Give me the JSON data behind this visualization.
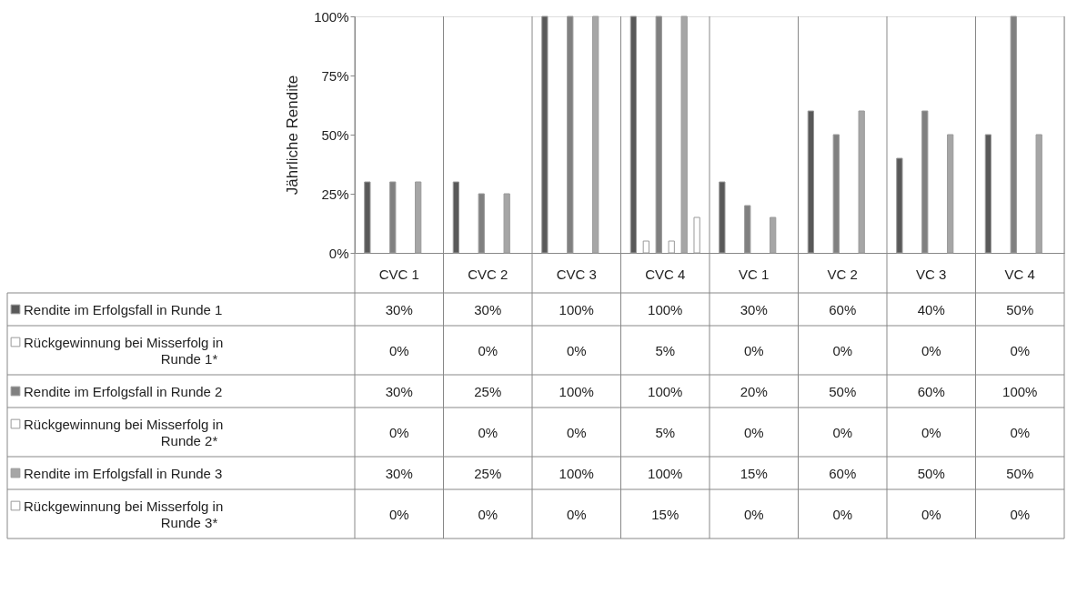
{
  "chart_data": {
    "type": "bar",
    "ylabel": "Jährliche Rendite",
    "categories": [
      "CVC 1",
      "CVC 2",
      "CVC 3",
      "CVC 4",
      "VC 1",
      "VC 2",
      "VC 3",
      "VC 4"
    ],
    "ylim": [
      0,
      100
    ],
    "yticks": [
      {
        "value": 0,
        "label": "0%"
      },
      {
        "value": 25,
        "label": "25%"
      },
      {
        "value": 50,
        "label": "50%"
      },
      {
        "value": 75,
        "label": "75%"
      },
      {
        "value": 100,
        "label": "100%"
      }
    ],
    "grid": false,
    "legend": "bottom",
    "series": [
      {
        "name": "Rendite im Erfolgsfall in Runde 1",
        "color": "#595959",
        "values": [
          30,
          30,
          100,
          100,
          30,
          60,
          40,
          50
        ],
        "value_labels": [
          "30%",
          "30%",
          "100%",
          "100%",
          "30%",
          "60%",
          "40%",
          "50%"
        ]
      },
      {
        "name": "Rückgewinnung bei Misserfolg in Runde 1*",
        "color": "#ffffff",
        "values": [
          0,
          0,
          0,
          5,
          0,
          0,
          0,
          0
        ],
        "value_labels": [
          "0%",
          "0%",
          "0%",
          "5%",
          "0%",
          "0%",
          "0%",
          "0%"
        ]
      },
      {
        "name": "Rendite im Erfolgsfall in Runde 2",
        "color": "#808080",
        "values": [
          30,
          25,
          100,
          100,
          20,
          50,
          60,
          100
        ],
        "value_labels": [
          "30%",
          "25%",
          "100%",
          "100%",
          "20%",
          "50%",
          "60%",
          "100%"
        ]
      },
      {
        "name": "Rückgewinnung bei Misserfolg in Runde 2*",
        "color": "#ffffff",
        "values": [
          0,
          0,
          0,
          5,
          0,
          0,
          0,
          0
        ],
        "value_labels": [
          "0%",
          "0%",
          "0%",
          "5%",
          "0%",
          "0%",
          "0%",
          "0%"
        ]
      },
      {
        "name": "Rendite im Erfolgsfall in Runde 3",
        "color": "#a6a6a6",
        "values": [
          30,
          25,
          100,
          100,
          15,
          60,
          50,
          50
        ],
        "value_labels": [
          "30%",
          "25%",
          "100%",
          "100%",
          "15%",
          "60%",
          "50%",
          "50%"
        ]
      },
      {
        "name": "Rückgewinnung bei Misserfolg in Runde 3*",
        "color": "#ffffff",
        "values": [
          0,
          0,
          0,
          15,
          0,
          0,
          0,
          0
        ],
        "value_labels": [
          "0%",
          "0%",
          "0%",
          "15%",
          "0%",
          "0%",
          "0%",
          "0%"
        ]
      }
    ]
  }
}
